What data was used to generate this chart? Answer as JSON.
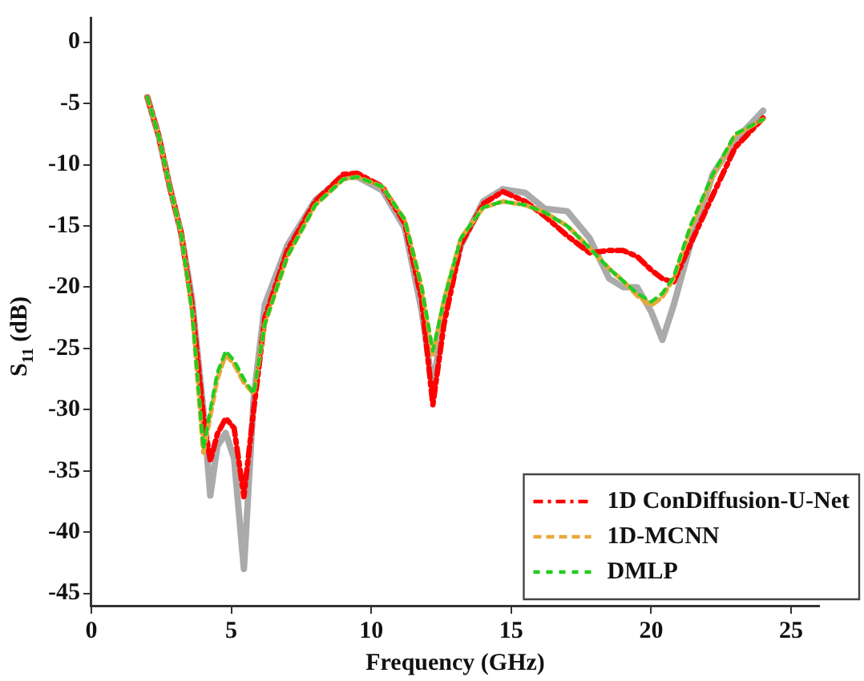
{
  "chart_data": {
    "type": "line",
    "xlabel": "Frequency (GHz)",
    "ylabel": "S$_{11}$ (dB)",
    "x": [
      2,
      2.4,
      2.8,
      3.2,
      3.6,
      4.0,
      4.25,
      4.5,
      4.8,
      5.1,
      5.45,
      5.8,
      6.2,
      7,
      8,
      9,
      9.5,
      10.4,
      11.2,
      11.8,
      12.2,
      12.6,
      13.2,
      14,
      14.7,
      15.5,
      16.2,
      17,
      17.8,
      18.5,
      19,
      19.5,
      20,
      20.4,
      20.8,
      21.4,
      22.2,
      23,
      24
    ],
    "xlim": [
      0,
      26
    ],
    "xticks": [
      0,
      5,
      10,
      15,
      20,
      25
    ],
    "ylim": [
      -46,
      2
    ],
    "yticks": [
      0,
      -5,
      -10,
      -15,
      -20,
      -25,
      -30,
      -35,
      -40,
      -45
    ],
    "grid": false,
    "legend": "bottom right",
    "marker": "none",
    "series": [
      {
        "color": "#aaaaaa",
        "line_style": "solid",
        "values": [
          -4.5,
          -7.6,
          -11.8,
          -15.5,
          -21,
          -30,
          -37,
          -33,
          -31.9,
          -34,
          -43,
          -29,
          -21.4,
          -16.6,
          -12.9,
          -11,
          -11,
          -12.1,
          -15.2,
          -21.9,
          -28.3,
          -22,
          -16.6,
          -13,
          -12,
          -12.3,
          -13.6,
          -13.8,
          -16,
          -19.3,
          -20,
          -20,
          -22,
          -24.3,
          -21.5,
          -16.5,
          -10.8,
          -8,
          -5.6
        ]
      },
      {
        "name": "1D ConDiffusion-U-Net",
        "color": "#ff0000",
        "line_style": "dashdot",
        "values": [
          -4.5,
          -7.6,
          -11.8,
          -15.5,
          -21.5,
          -30.5,
          -34.2,
          -32,
          -30.7,
          -31.5,
          -37.1,
          -30,
          -22.5,
          -17,
          -13,
          -10.8,
          -10.7,
          -11.8,
          -14.8,
          -21,
          -29.6,
          -23,
          -16.5,
          -13.2,
          -12.2,
          -13,
          -14.2,
          -15.8,
          -17.2,
          -17,
          -17,
          -17.5,
          -18.6,
          -19.3,
          -19.6,
          -16.5,
          -12.5,
          -8.6,
          -6.2
        ]
      },
      {
        "name": "1D-MCNN",
        "color": "#e8a838",
        "line_style": "dashed",
        "values": [
          -4.5,
          -7.6,
          -11.8,
          -15.5,
          -22,
          -33.5,
          -30.5,
          -27.5,
          -25.5,
          -26.3,
          -27.8,
          -28.7,
          -23,
          -17.5,
          -13.3,
          -11.2,
          -11,
          -11.8,
          -14.5,
          -20,
          -25.5,
          -21,
          -16,
          -13.5,
          -13,
          -13.3,
          -13.9,
          -15,
          -16.8,
          -18.5,
          -19.5,
          -20.7,
          -21.5,
          -20.8,
          -19.3,
          -15.2,
          -11,
          -7.6,
          -6.3
        ]
      },
      {
        "name": "DMLP",
        "color": "#22cc22",
        "line_style": "dotted",
        "values": [
          -4.5,
          -7.6,
          -11.8,
          -15.5,
          -22,
          -33.2,
          -30,
          -27,
          -25.2,
          -26,
          -27.5,
          -28.7,
          -23,
          -17.5,
          -13.3,
          -11.2,
          -11,
          -11.8,
          -14.5,
          -20,
          -25.2,
          -21,
          -16,
          -13.5,
          -13,
          -13.3,
          -13.9,
          -15,
          -16.8,
          -18.5,
          -19.5,
          -20.5,
          -21.2,
          -20.5,
          -19.2,
          -15,
          -10.8,
          -7.5,
          -6.3
        ]
      }
    ]
  }
}
